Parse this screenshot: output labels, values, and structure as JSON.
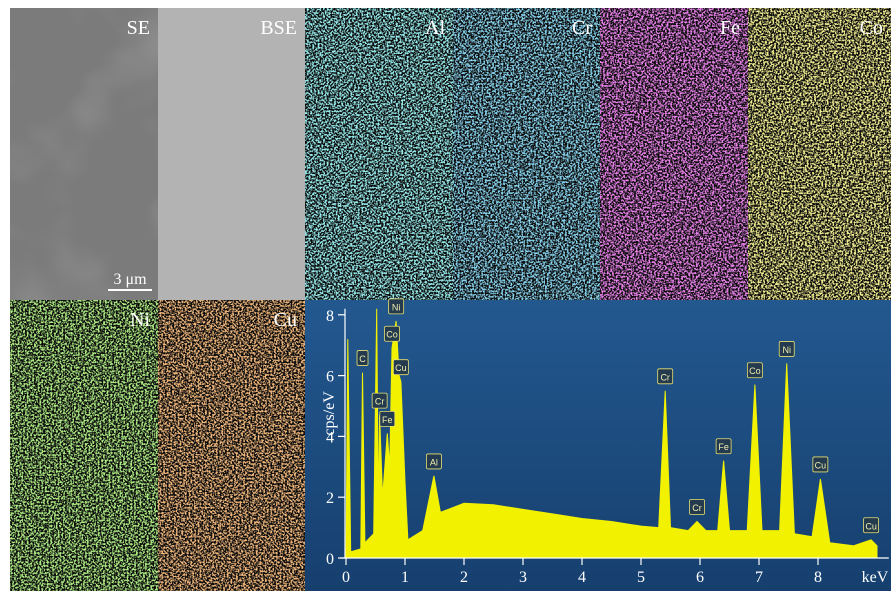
{
  "panels": [
    {
      "label": "SE"
    },
    {
      "label": "BSE"
    },
    {
      "label": "Al",
      "color": "#4fd2d6"
    },
    {
      "label": "Cr",
      "color": "#3fa8dc"
    },
    {
      "label": "Fe",
      "color": "#d23ad6"
    },
    {
      "label": "Co",
      "color": "#e0d848"
    },
    {
      "label": "Ni",
      "color": "#6ad23a"
    },
    {
      "label": "Cu",
      "color": "#e07a34"
    }
  ],
  "scale_bar": "3 μm",
  "chart_data": {
    "type": "area",
    "xlabel": "keV",
    "ylabel": "cps/eV",
    "xlim": [
      -0.1,
      9.2
    ],
    "ylim": [
      0,
      8.2
    ],
    "xticks": [
      0,
      1,
      2,
      3,
      4,
      5,
      6,
      7,
      8
    ],
    "yticks": [
      0,
      2,
      4,
      6,
      8
    ],
    "color": "#f2f200",
    "x": [
      0,
      0.03,
      0.08,
      0.25,
      0.28,
      0.32,
      0.47,
      0.52,
      0.55,
      0.57,
      0.62,
      0.7,
      0.74,
      0.78,
      0.85,
      0.9,
      0.93,
      1.0,
      1.05,
      1.3,
      1.49,
      1.6,
      2.0,
      2.5,
      3.0,
      3.5,
      4.0,
      4.5,
      5.0,
      5.3,
      5.41,
      5.5,
      5.8,
      5.95,
      6.1,
      6.3,
      6.4,
      6.5,
      6.8,
      6.93,
      7.05,
      7.35,
      7.47,
      7.6,
      7.9,
      8.04,
      8.2,
      8.6,
      8.9,
      9.0
    ],
    "values": [
      0,
      7.2,
      0.2,
      0.3,
      6.1,
      0.5,
      0.8,
      8.2,
      1.5,
      4.7,
      2,
      4.1,
      3,
      6.9,
      7.8,
      6,
      5.8,
      2.5,
      0.6,
      0.9,
      2.7,
      1.5,
      1.8,
      1.75,
      1.6,
      1.45,
      1.3,
      1.2,
      1.05,
      1.0,
      5.5,
      1.0,
      0.9,
      1.2,
      0.9,
      0.9,
      3.2,
      0.9,
      0.9,
      5.7,
      0.9,
      0.9,
      6.4,
      0.8,
      0.7,
      2.6,
      0.5,
      0.4,
      0.6,
      0.4
    ],
    "peaks": [
      {
        "label": "C",
        "x": 0.28,
        "y": 6.1
      },
      {
        "label": "Cr",
        "x": 0.57,
        "y": 4.7
      },
      {
        "label": "Fe",
        "x": 0.7,
        "y": 4.1
      },
      {
        "label": "Co",
        "x": 0.78,
        "y": 6.9
      },
      {
        "label": "Ni",
        "x": 0.85,
        "y": 7.8
      },
      {
        "label": "Cu",
        "x": 0.93,
        "y": 5.8
      },
      {
        "label": "Al",
        "x": 1.49,
        "y": 2.7
      },
      {
        "label": "Cr",
        "x": 5.41,
        "y": 5.5
      },
      {
        "label": "Cr",
        "x": 5.95,
        "y": 1.2
      },
      {
        "label": "Fe",
        "x": 6.4,
        "y": 3.2
      },
      {
        "label": "Co",
        "x": 6.93,
        "y": 5.7
      },
      {
        "label": "Ni",
        "x": 7.47,
        "y": 6.4
      },
      {
        "label": "Cu",
        "x": 8.04,
        "y": 2.6
      },
      {
        "label": "Cu",
        "x": 8.9,
        "y": 0.6
      }
    ]
  }
}
